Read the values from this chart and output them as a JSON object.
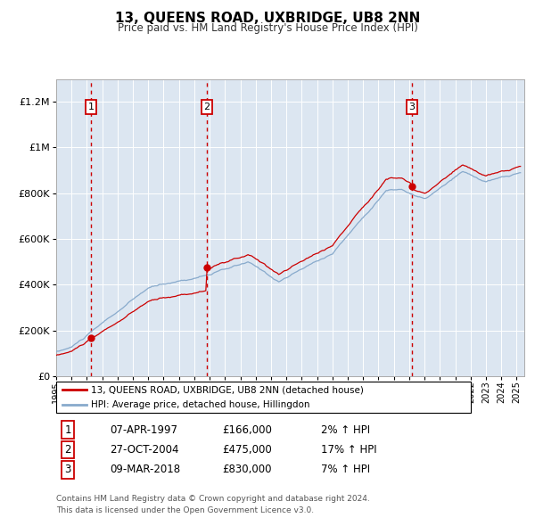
{
  "title": "13, QUEENS ROAD, UXBRIDGE, UB8 2NN",
  "subtitle": "Price paid vs. HM Land Registry's House Price Index (HPI)",
  "legend_line1": "13, QUEENS ROAD, UXBRIDGE, UB8 2NN (detached house)",
  "legend_line2": "HPI: Average price, detached house, Hillingdon",
  "red_color": "#cc0000",
  "blue_color": "#88aacc",
  "bg_color": "#dce6f1",
  "grid_color": "#ffffff",
  "purchases": [
    {
      "num": 1,
      "date": "07-APR-1997",
      "price": 166000,
      "hpi_pct": "2%",
      "x_year": 1997.27
    },
    {
      "num": 2,
      "date": "27-OCT-2004",
      "price": 475000,
      "hpi_pct": "17%",
      "x_year": 2004.82
    },
    {
      "num": 3,
      "date": "09-MAR-2018",
      "price": 830000,
      "hpi_pct": "7%",
      "x_year": 2018.19
    }
  ],
  "footer_line1": "Contains HM Land Registry data © Crown copyright and database right 2024.",
  "footer_line2": "This data is licensed under the Open Government Licence v3.0.",
  "ylim_max": 1300000,
  "yticks": [
    0,
    200000,
    400000,
    600000,
    800000,
    1000000,
    1200000
  ],
  "xlim_start": 1995.0,
  "xlim_end": 2025.5
}
